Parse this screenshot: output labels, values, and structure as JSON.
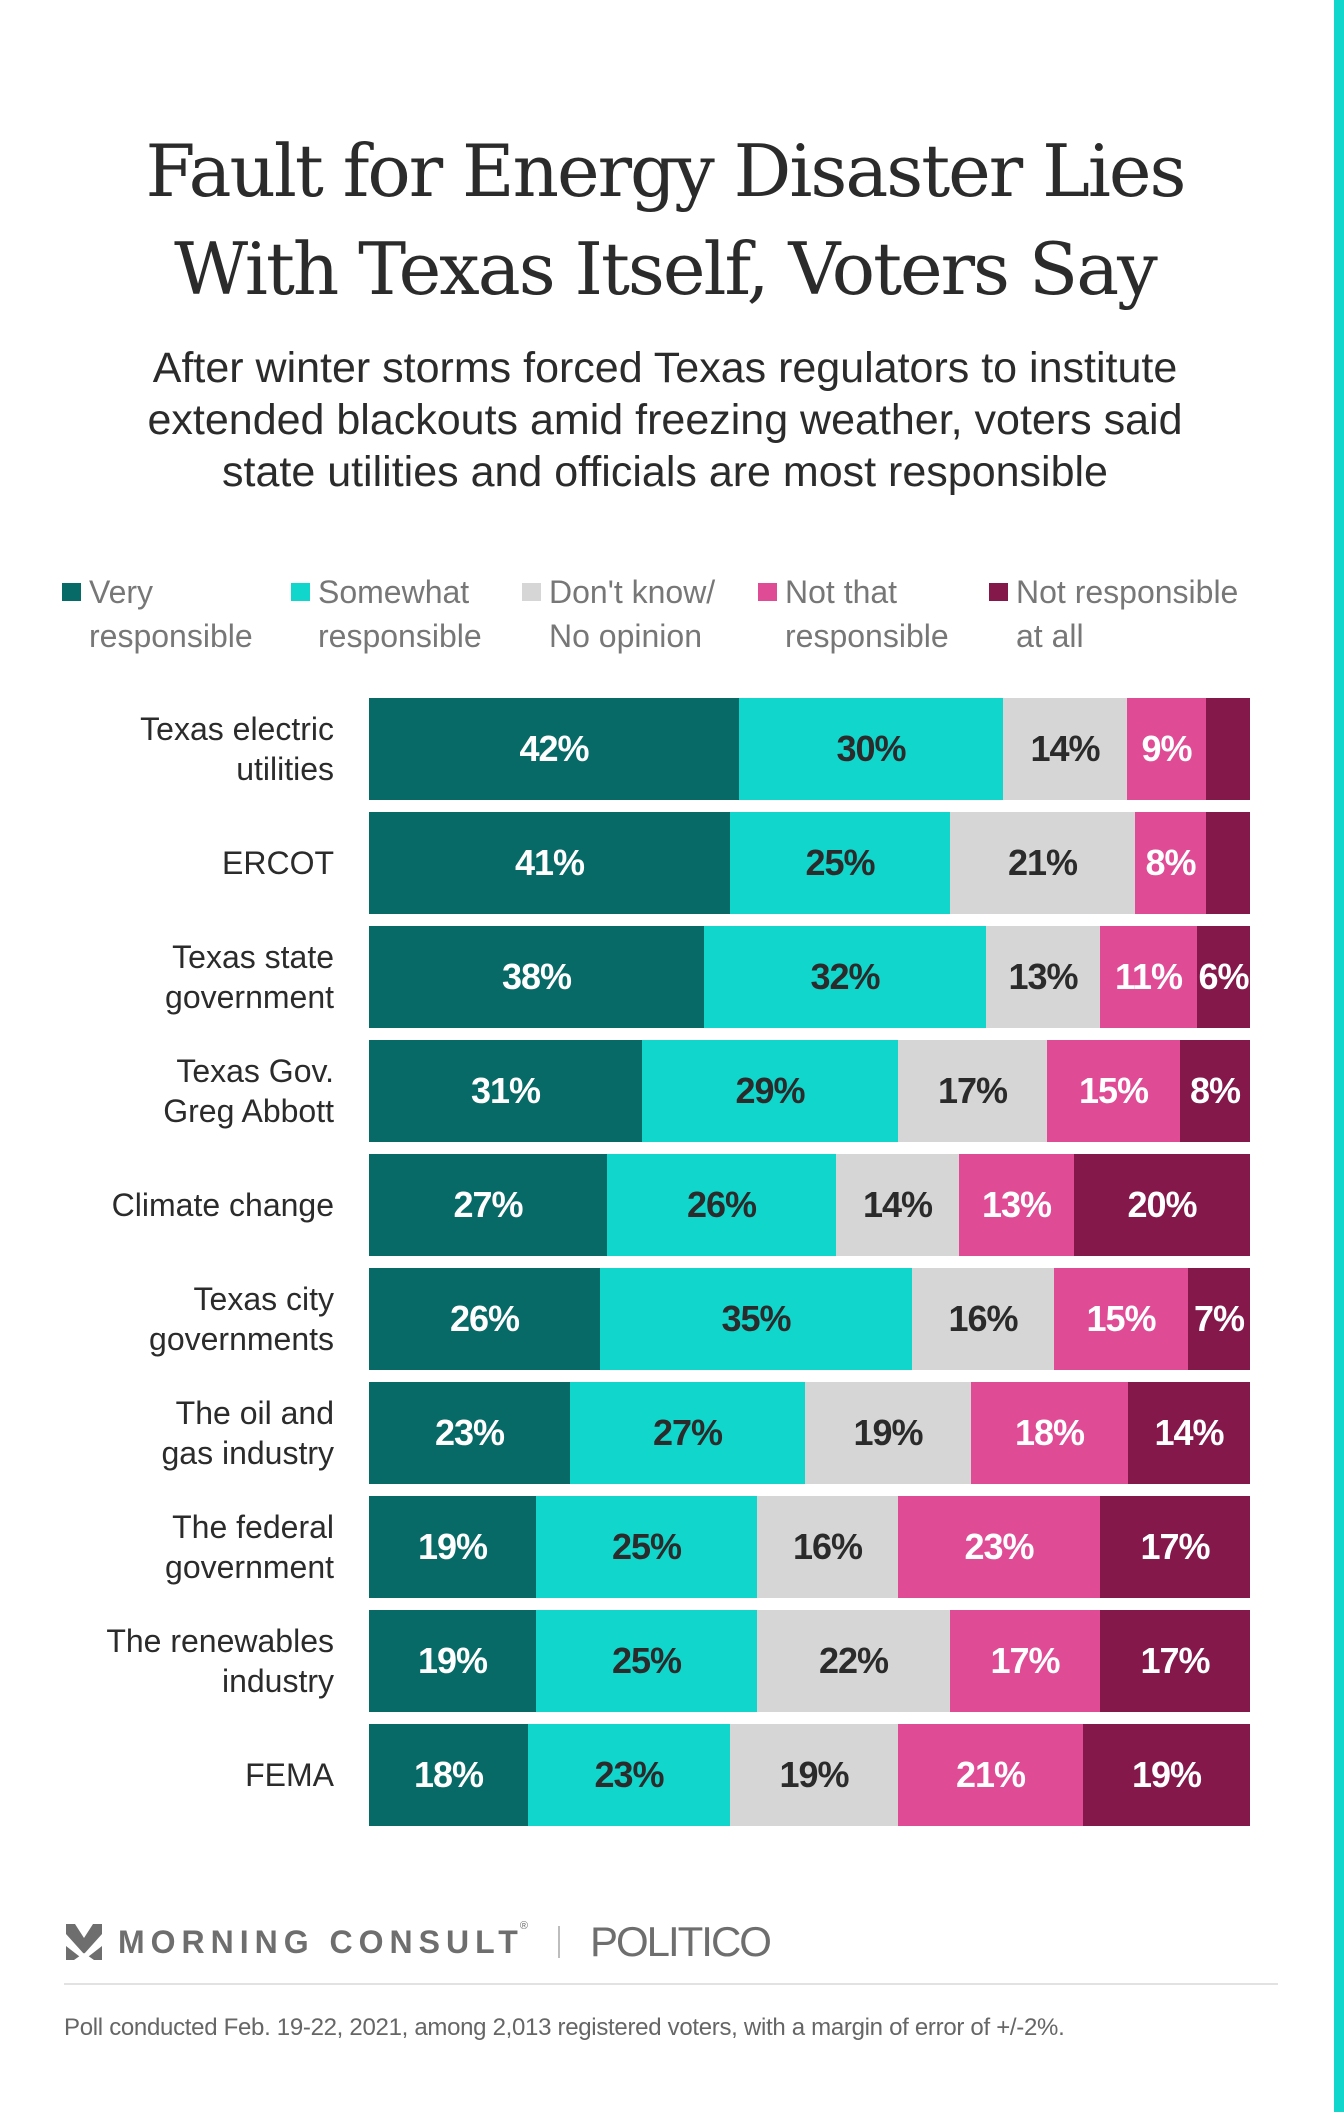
{
  "title": {
    "line1": "Fault for Energy Disaster Lies",
    "line2": "With Texas Itself, Voters Say"
  },
  "subtitle": {
    "line1": "After winter storms forced Texas regulators to institute",
    "line2": "extended blackouts amid freezing weather, voters said",
    "line3": "state utilities and officials are most responsible"
  },
  "legend": [
    {
      "line1": "Very",
      "line2": "responsible",
      "color": "#086A66"
    },
    {
      "line1": "Somewhat",
      "line2": "responsible",
      "color": "#10D6CC"
    },
    {
      "line1": "Don't know/",
      "line2": "No opinion",
      "color": "#D6D6D6"
    },
    {
      "line1": "Not that",
      "line2": "responsible",
      "color": "#DF4B95"
    },
    {
      "line1": "Not responsible",
      "line2": "at all",
      "color": "#84184B"
    }
  ],
  "chart_data": {
    "type": "bar",
    "orientation": "horizontal",
    "stacked": true,
    "title": "Fault for Energy Disaster Lies With Texas Itself, Voters Say",
    "subtitle": "After winter storms forced Texas regulators to institute extended blackouts amid freezing weather, voters said state utilities and officials are most responsible",
    "xlabel": "",
    "ylabel": "",
    "xlim": [
      0,
      100
    ],
    "unit": "%",
    "grid": false,
    "legend_position": "top",
    "categories": [
      "Texas electric utilities",
      "ERCOT",
      "Texas state government",
      "Texas Gov. Greg Abbott",
      "Climate change",
      "Texas city governments",
      "The oil and gas industry",
      "The federal government",
      "The renewables industry",
      "FEMA"
    ],
    "category_label_lines": [
      [
        "Texas electric",
        "utilities"
      ],
      [
        "ERCOT"
      ],
      [
        "Texas state",
        "government"
      ],
      [
        "Texas Gov.",
        "Greg Abbott"
      ],
      [
        "Climate change"
      ],
      [
        "Texas city",
        "governments"
      ],
      [
        "The oil and",
        "gas industry"
      ],
      [
        "The federal",
        "government"
      ],
      [
        "The renewables",
        "industry"
      ],
      [
        "FEMA"
      ]
    ],
    "series": [
      {
        "name": "Very responsible",
        "color": "#086A66",
        "label_color": "#ffffff",
        "values": [
          42,
          41,
          38,
          31,
          27,
          26,
          23,
          19,
          19,
          18
        ],
        "labels_shown": [
          true,
          true,
          true,
          true,
          true,
          true,
          true,
          true,
          true,
          true
        ]
      },
      {
        "name": "Somewhat responsible",
        "color": "#10D6CC",
        "label_color": "#2b2b2b",
        "values": [
          30,
          25,
          32,
          29,
          26,
          35,
          27,
          25,
          25,
          23
        ],
        "labels_shown": [
          true,
          true,
          true,
          true,
          true,
          true,
          true,
          true,
          true,
          true
        ]
      },
      {
        "name": "Don't know/No opinion",
        "color": "#D6D6D6",
        "label_color": "#2b2b2b",
        "values": [
          14,
          21,
          13,
          17,
          14,
          16,
          19,
          16,
          22,
          19
        ],
        "labels_shown": [
          true,
          true,
          true,
          true,
          true,
          true,
          true,
          true,
          true,
          true
        ]
      },
      {
        "name": "Not that responsible",
        "color": "#DF4B95",
        "label_color": "#ffffff",
        "values": [
          9,
          8,
          11,
          15,
          13,
          15,
          18,
          23,
          17,
          21
        ],
        "labels_shown": [
          true,
          true,
          true,
          true,
          true,
          true,
          true,
          true,
          true,
          true
        ]
      },
      {
        "name": "Not responsible at all",
        "color": "#84184B",
        "label_color": "#ffffff",
        "values": [
          5,
          5,
          6,
          8,
          20,
          7,
          14,
          17,
          17,
          19
        ],
        "labels_shown": [
          false,
          false,
          true,
          true,
          true,
          true,
          true,
          true,
          true,
          true
        ]
      }
    ]
  },
  "footer": {
    "brand1": "MORNING CONSULT",
    "brand1_mark": "®",
    "brand2": "POLITICO",
    "note": "Poll conducted Feb. 19-22, 2021, among 2,013 registered voters, with a margin of error of +/-2%."
  },
  "accent_color": "#10D6CC"
}
